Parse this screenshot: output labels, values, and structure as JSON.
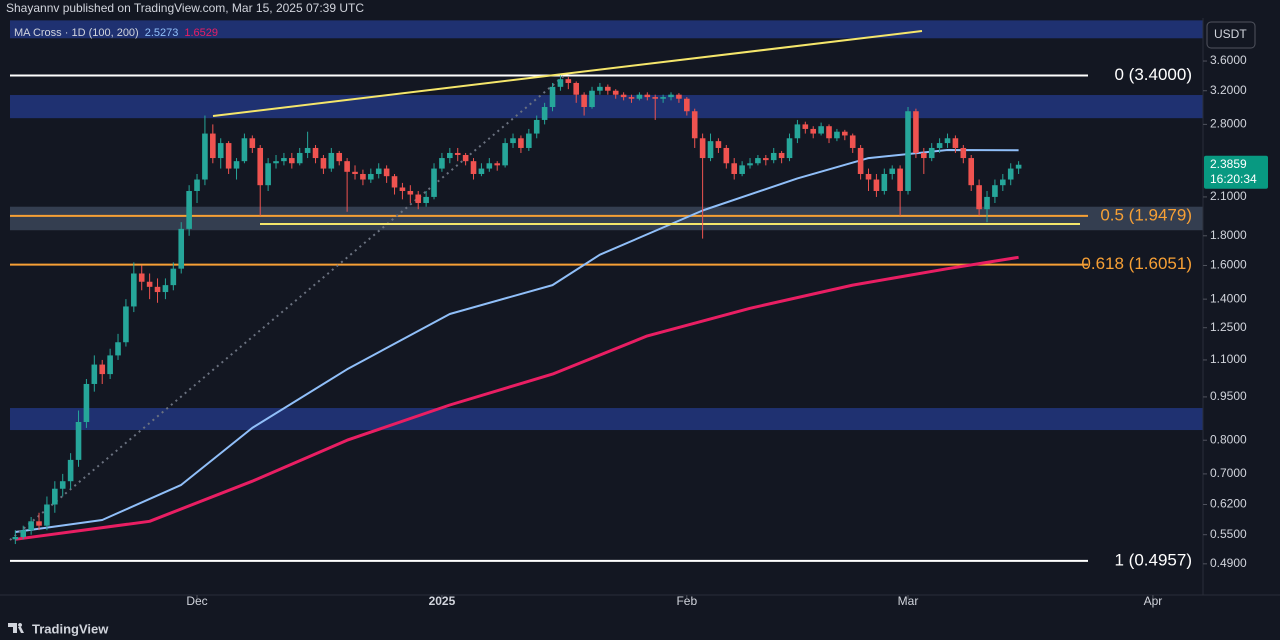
{
  "header": "Shayannv published on TradingView.com, Mar 15, 2025 07:39 UTC",
  "footer": "TradingView",
  "chart_data": {
    "type": "candlestick",
    "currency": "USDT",
    "indicator": "MA Cross · 1D (100, 200)",
    "countdown": "16:20:34",
    "log_scale": true,
    "up_color": "#26a69a",
    "down_color": "#ef5350",
    "xlim": [
      -1.94,
      150.34
    ],
    "xticks": [
      {
        "value": 23,
        "label": "Dec"
      },
      {
        "value": 54,
        "label": "2025"
      },
      {
        "value": 85,
        "label": "Feb"
      },
      {
        "value": 113,
        "label": "Mar"
      },
      {
        "value": 144,
        "label": "Apr"
      }
    ],
    "ylim": [
      0.433,
      4.27
    ],
    "yticks": [
      {
        "value": 3.6,
        "label": "3.6000"
      },
      {
        "value": 3.2,
        "label": "3.2000"
      },
      {
        "value": 2.8,
        "label": "2.8000"
      },
      {
        "value": 2.1,
        "label": "2.1000"
      },
      {
        "value": 1.8,
        "label": "1.8000"
      },
      {
        "value": 1.6,
        "label": "1.6000"
      },
      {
        "value": 1.4,
        "label": "1.4000"
      },
      {
        "value": 1.25,
        "label": "1.2500"
      },
      {
        "value": 1.1,
        "label": "1.1000"
      },
      {
        "value": 0.95,
        "label": "0.9500"
      },
      {
        "value": 0.8,
        "label": "0.8000"
      },
      {
        "value": 0.7,
        "label": "0.7000"
      },
      {
        "value": 0.62,
        "label": "0.6200"
      },
      {
        "value": 0.55,
        "label": "0.5500"
      },
      {
        "value": 0.49,
        "label": "0.4900"
      }
    ],
    "zones": [
      {
        "range": [
          3.94,
          4.23
        ],
        "color": "#22367f"
      },
      {
        "range": [
          2.87,
          3.146
        ],
        "color": "#22367f"
      },
      {
        "range": [
          1.84,
          2.02
        ],
        "color": "#3b4558"
      },
      {
        "range": [
          0.833,
          0.909
        ],
        "color": "#22367f"
      }
    ],
    "levels": [
      {
        "value": 3.4,
        "label": "0 (3.4000)",
        "color": "#ffffff"
      },
      {
        "value": 1.9479,
        "label": "0.5 (1.9479)",
        "color": "#f7a035"
      },
      {
        "value": 1.6051,
        "label": "0.618 (1.6051)",
        "color": "#f7a035"
      },
      {
        "value": 0.4957,
        "label": "1 (0.4957)",
        "color": "#ffffff"
      }
    ],
    "ma_lines": [
      {
        "color": "#90bff9",
        "x": [
          0,
          11,
          21,
          30,
          42,
          55,
          68,
          74,
          87,
          99,
          108,
          118,
          127
        ],
        "values": [
          0.556,
          0.583,
          0.67,
          0.84,
          1.06,
          1.32,
          1.48,
          1.67,
          1.99,
          2.26,
          2.45,
          2.53,
          2.5273
        ]
      },
      {
        "color": "#e91e63",
        "x": [
          0,
          17,
          30,
          42,
          55,
          68,
          80,
          93,
          106,
          118,
          127
        ],
        "values": [
          0.54,
          0.58,
          0.68,
          0.8,
          0.92,
          1.04,
          1.21,
          1.35,
          1.48,
          1.58,
          1.6529
        ]
      }
    ],
    "candles": [
      [
        0.54,
        0.56,
        0.53,
        0.545
      ],
      [
        0.545,
        0.57,
        0.54,
        0.56
      ],
      [
        0.56,
        0.59,
        0.55,
        0.58
      ],
      [
        0.58,
        0.6,
        0.56,
        0.57
      ],
      [
        0.57,
        0.64,
        0.56,
        0.62
      ],
      [
        0.62,
        0.68,
        0.6,
        0.66
      ],
      [
        0.66,
        0.7,
        0.64,
        0.68
      ],
      [
        0.68,
        0.76,
        0.66,
        0.74
      ],
      [
        0.74,
        0.9,
        0.72,
        0.86
      ],
      [
        0.86,
        1.02,
        0.84,
        1.0
      ],
      [
        1.0,
        1.12,
        0.97,
        1.08
      ],
      [
        1.08,
        1.1,
        1.0,
        1.04
      ],
      [
        1.04,
        1.15,
        1.02,
        1.12
      ],
      [
        1.12,
        1.22,
        1.1,
        1.18
      ],
      [
        1.18,
        1.4,
        1.16,
        1.36
      ],
      [
        1.36,
        1.62,
        1.33,
        1.55
      ],
      [
        1.55,
        1.6,
        1.45,
        1.5
      ],
      [
        1.5,
        1.55,
        1.4,
        1.47
      ],
      [
        1.47,
        1.52,
        1.38,
        1.44
      ],
      [
        1.44,
        1.52,
        1.4,
        1.48
      ],
      [
        1.48,
        1.62,
        1.45,
        1.58
      ],
      [
        1.58,
        1.9,
        1.55,
        1.85
      ],
      [
        1.85,
        2.2,
        1.8,
        2.15
      ],
      [
        2.15,
        2.3,
        2.05,
        2.25
      ],
      [
        2.25,
        2.9,
        2.2,
        2.7
      ],
      [
        2.7,
        2.8,
        2.4,
        2.45
      ],
      [
        2.45,
        2.65,
        2.35,
        2.6
      ],
      [
        2.6,
        2.62,
        2.3,
        2.35
      ],
      [
        2.35,
        2.45,
        2.25,
        2.42
      ],
      [
        2.42,
        2.7,
        2.4,
        2.65
      ],
      [
        2.65,
        2.68,
        2.5,
        2.55
      ],
      [
        2.55,
        2.58,
        1.95,
        2.2
      ],
      [
        2.2,
        2.45,
        2.15,
        2.4
      ],
      [
        2.4,
        2.48,
        2.35,
        2.42
      ],
      [
        2.42,
        2.5,
        2.38,
        2.45
      ],
      [
        2.45,
        2.5,
        2.35,
        2.4
      ],
      [
        2.4,
        2.55,
        2.38,
        2.5
      ],
      [
        2.5,
        2.72,
        2.45,
        2.55
      ],
      [
        2.55,
        2.58,
        2.4,
        2.45
      ],
      [
        2.45,
        2.48,
        2.3,
        2.35
      ],
      [
        2.35,
        2.55,
        2.32,
        2.5
      ],
      [
        2.5,
        2.52,
        2.38,
        2.42
      ],
      [
        2.42,
        2.45,
        1.98,
        2.32
      ],
      [
        2.32,
        2.38,
        2.25,
        2.3
      ],
      [
        2.3,
        2.34,
        2.2,
        2.25
      ],
      [
        2.25,
        2.35,
        2.22,
        2.3
      ],
      [
        2.3,
        2.4,
        2.26,
        2.35
      ],
      [
        2.35,
        2.38,
        2.22,
        2.28
      ],
      [
        2.28,
        2.3,
        2.12,
        2.18
      ],
      [
        2.18,
        2.22,
        2.08,
        2.15
      ],
      [
        2.15,
        2.2,
        2.05,
        2.12
      ],
      [
        2.12,
        2.15,
        2.0,
        2.05
      ],
      [
        2.05,
        2.15,
        2.02,
        2.1
      ],
      [
        2.1,
        2.4,
        2.08,
        2.35
      ],
      [
        2.35,
        2.5,
        2.32,
        2.45
      ],
      [
        2.45,
        2.55,
        2.4,
        2.5
      ],
      [
        2.5,
        2.55,
        2.42,
        2.48
      ],
      [
        2.48,
        2.5,
        2.38,
        2.42
      ],
      [
        2.42,
        2.45,
        2.25,
        2.3
      ],
      [
        2.3,
        2.4,
        2.28,
        2.35
      ],
      [
        2.35,
        2.45,
        2.32,
        2.4
      ],
      [
        2.4,
        2.42,
        2.33,
        2.38
      ],
      [
        2.38,
        2.65,
        2.36,
        2.6
      ],
      [
        2.6,
        2.7,
        2.55,
        2.65
      ],
      [
        2.65,
        2.68,
        2.5,
        2.55
      ],
      [
        2.55,
        2.75,
        2.52,
        2.7
      ],
      [
        2.7,
        2.9,
        2.65,
        2.85
      ],
      [
        2.85,
        3.05,
        2.8,
        3.0
      ],
      [
        3.0,
        3.3,
        2.95,
        3.25
      ],
      [
        3.25,
        3.4,
        3.2,
        3.35
      ],
      [
        3.35,
        3.38,
        3.22,
        3.3
      ],
      [
        3.3,
        3.32,
        3.05,
        3.15
      ],
      [
        3.15,
        3.18,
        2.9,
        3.0
      ],
      [
        3.0,
        3.25,
        2.98,
        3.2
      ],
      [
        3.2,
        3.3,
        3.15,
        3.25
      ],
      [
        3.25,
        3.28,
        3.15,
        3.2
      ],
      [
        3.2,
        3.22,
        3.1,
        3.15
      ],
      [
        3.15,
        3.18,
        3.08,
        3.12
      ],
      [
        3.12,
        3.15,
        3.05,
        3.1
      ],
      [
        3.1,
        3.18,
        3.08,
        3.15
      ],
      [
        3.15,
        3.18,
        3.08,
        3.12
      ],
      [
        3.12,
        3.15,
        2.85,
        3.1
      ],
      [
        3.1,
        3.15,
        3.05,
        3.12
      ],
      [
        3.12,
        3.18,
        3.08,
        3.15
      ],
      [
        3.15,
        3.17,
        3.05,
        3.1
      ],
      [
        3.1,
        3.12,
        2.9,
        2.95
      ],
      [
        2.95,
        2.98,
        2.55,
        2.65
      ],
      [
        2.65,
        2.7,
        1.78,
        2.45
      ],
      [
        2.45,
        2.7,
        2.42,
        2.62
      ],
      [
        2.62,
        2.65,
        2.5,
        2.55
      ],
      [
        2.55,
        2.58,
        2.35,
        2.4
      ],
      [
        2.4,
        2.45,
        2.25,
        2.3
      ],
      [
        2.3,
        2.42,
        2.28,
        2.38
      ],
      [
        2.38,
        2.45,
        2.35,
        2.4
      ],
      [
        2.4,
        2.48,
        2.38,
        2.45
      ],
      [
        2.45,
        2.48,
        2.38,
        2.43
      ],
      [
        2.43,
        2.55,
        2.4,
        2.5
      ],
      [
        2.5,
        2.52,
        2.4,
        2.45
      ],
      [
        2.45,
        2.7,
        2.42,
        2.65
      ],
      [
        2.65,
        2.85,
        2.6,
        2.8
      ],
      [
        2.8,
        2.83,
        2.7,
        2.75
      ],
      [
        2.75,
        2.78,
        2.65,
        2.7
      ],
      [
        2.7,
        2.82,
        2.68,
        2.78
      ],
      [
        2.78,
        2.8,
        2.6,
        2.65
      ],
      [
        2.65,
        2.75,
        2.62,
        2.72
      ],
      [
        2.72,
        2.74,
        2.63,
        2.68
      ],
      [
        2.68,
        2.7,
        2.5,
        2.55
      ],
      [
        2.55,
        2.58,
        2.25,
        2.3
      ],
      [
        2.3,
        2.35,
        2.15,
        2.25
      ],
      [
        2.25,
        2.3,
        2.1,
        2.15
      ],
      [
        2.15,
        2.35,
        2.12,
        2.3
      ],
      [
        2.3,
        2.38,
        2.25,
        2.35
      ],
      [
        2.35,
        2.38,
        1.95,
        2.15
      ],
      [
        2.15,
        3.0,
        2.12,
        2.95
      ],
      [
        2.95,
        2.98,
        2.45,
        2.5
      ],
      [
        2.5,
        2.55,
        2.3,
        2.45
      ],
      [
        2.45,
        2.6,
        2.42,
        2.55
      ],
      [
        2.55,
        2.65,
        2.5,
        2.6
      ],
      [
        2.6,
        2.7,
        2.55,
        2.65
      ],
      [
        2.65,
        2.68,
        2.5,
        2.55
      ],
      [
        2.55,
        2.58,
        2.4,
        2.45
      ],
      [
        2.45,
        2.48,
        2.15,
        2.2
      ],
      [
        2.2,
        2.25,
        1.95,
        2.0
      ],
      [
        2.0,
        2.15,
        1.9,
        2.1
      ],
      [
        2.1,
        2.25,
        2.05,
        2.2
      ],
      [
        2.2,
        2.3,
        2.15,
        2.25
      ],
      [
        2.25,
        2.4,
        2.2,
        2.35
      ],
      [
        2.35,
        2.42,
        2.3,
        2.3859
      ]
    ]
  }
}
